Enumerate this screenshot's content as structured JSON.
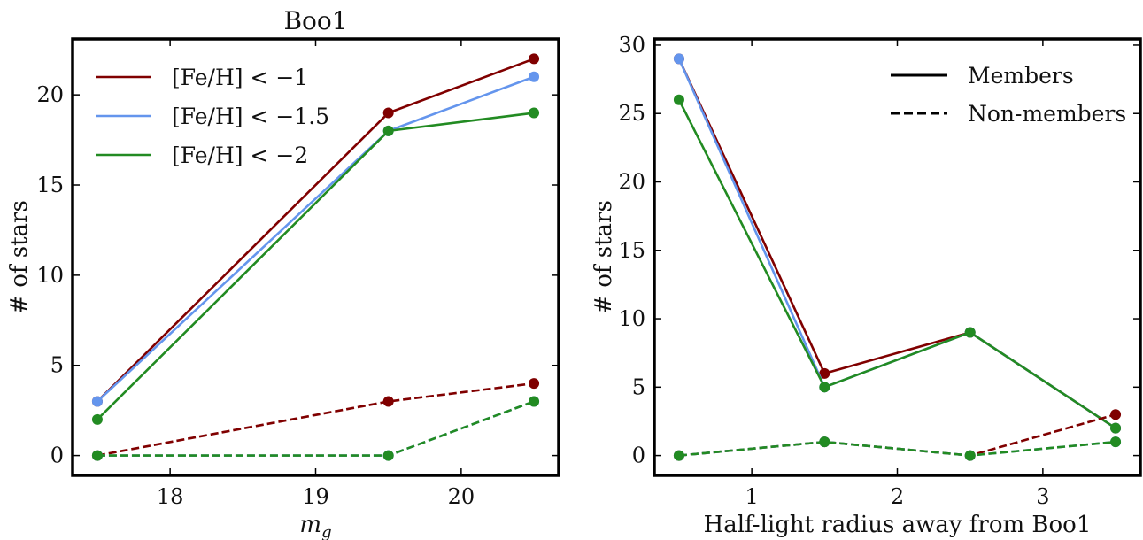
{
  "chart_data": [
    {
      "type": "line",
      "title": "Boo1",
      "xlabel": "m_g",
      "ylabel": "# of stars",
      "xlim": [
        17.33,
        20.67
      ],
      "ylim": [
        -1.1,
        23.1
      ],
      "xticks": [
        18,
        19,
        20
      ],
      "yticks": [
        0,
        5,
        10,
        15,
        20
      ],
      "grid": false,
      "legend_position": "top-left",
      "x": [
        17.5,
        19.5,
        20.5
      ],
      "series": [
        {
          "name": "[Fe/H] < −1",
          "color": "#800000",
          "style": "solid",
          "values": [
            3,
            19,
            22
          ]
        },
        {
          "name": "[Fe/H] < −1.5",
          "color": "#6495ED",
          "style": "solid",
          "values": [
            3,
            18,
            21
          ]
        },
        {
          "name": "[Fe/H] < −2",
          "color": "#228B22",
          "style": "solid",
          "values": [
            2,
            18,
            19
          ]
        },
        {
          "color": "#800000",
          "style": "dashed",
          "values": [
            0,
            3,
            4
          ]
        },
        {
          "color": "#6495ED",
          "style": "dashed",
          "values": [
            0,
            0,
            3
          ]
        },
        {
          "color": "#228B22",
          "style": "dashed",
          "values": [
            0,
            0,
            3
          ]
        }
      ]
    },
    {
      "type": "line",
      "title": "",
      "xlabel": "Half-light radius away from Boo1",
      "ylabel": "# of stars",
      "xlim": [
        0.33,
        3.67
      ],
      "ylim": [
        -1.45,
        30.45
      ],
      "xticks": [
        1,
        2,
        3
      ],
      "yticks": [
        0,
        5,
        10,
        15,
        20,
        25,
        30
      ],
      "grid": false,
      "legend_position": "top-right",
      "style_legend": [
        {
          "label": "Members",
          "style": "solid"
        },
        {
          "label": "Non-members",
          "style": "dashed"
        }
      ],
      "x": [
        0.5,
        1.5,
        2.5,
        3.5
      ],
      "series": [
        {
          "color": "#800000",
          "style": "solid",
          "values": [
            29,
            6,
            9,
            2
          ]
        },
        {
          "color": "#6495ED",
          "style": "solid",
          "values": [
            29,
            5,
            9,
            2
          ]
        },
        {
          "color": "#228B22",
          "style": "solid",
          "values": [
            26,
            5,
            9,
            2
          ]
        },
        {
          "color": "#800000",
          "style": "dashed",
          "values": [
            0,
            1,
            0,
            3
          ]
        },
        {
          "color": "#6495ED",
          "style": "dashed",
          "values": [
            0,
            1,
            0,
            1
          ]
        },
        {
          "color": "#228B22",
          "style": "dashed",
          "values": [
            0,
            1,
            0,
            1
          ]
        }
      ]
    }
  ]
}
